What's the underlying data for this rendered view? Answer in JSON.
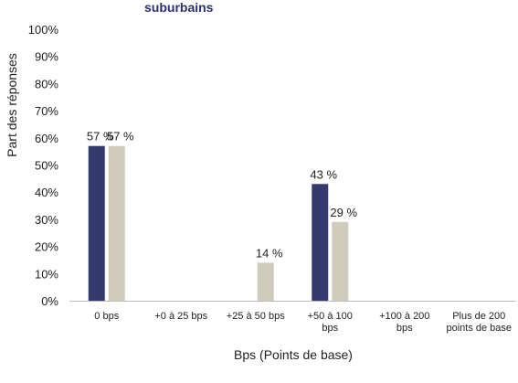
{
  "chart_data": {
    "type": "bar",
    "title": "suburbains",
    "xlabel": "Bps (Points de base)",
    "ylabel": "Part des réponses",
    "ylim": [
      0,
      100
    ],
    "yticks": [
      0,
      10,
      20,
      30,
      40,
      50,
      60,
      70,
      80,
      90,
      100
    ],
    "ytick_suffix": "%",
    "grid": false,
    "categories": [
      [
        "0 bps"
      ],
      [
        "+0 à 25 bps"
      ],
      [
        "+25 à 50 bps"
      ],
      [
        "+50 à 100",
        "bps"
      ],
      [
        "+100 à 200",
        "bps"
      ],
      [
        "Plus de 200",
        "points de base"
      ]
    ],
    "series": [
      {
        "color": "#343a6e",
        "values": [
          57,
          null,
          null,
          43,
          null,
          null
        ]
      },
      {
        "color": "#cfccbd",
        "values": [
          57,
          null,
          14,
          29,
          null,
          null
        ]
      }
    ]
  }
}
